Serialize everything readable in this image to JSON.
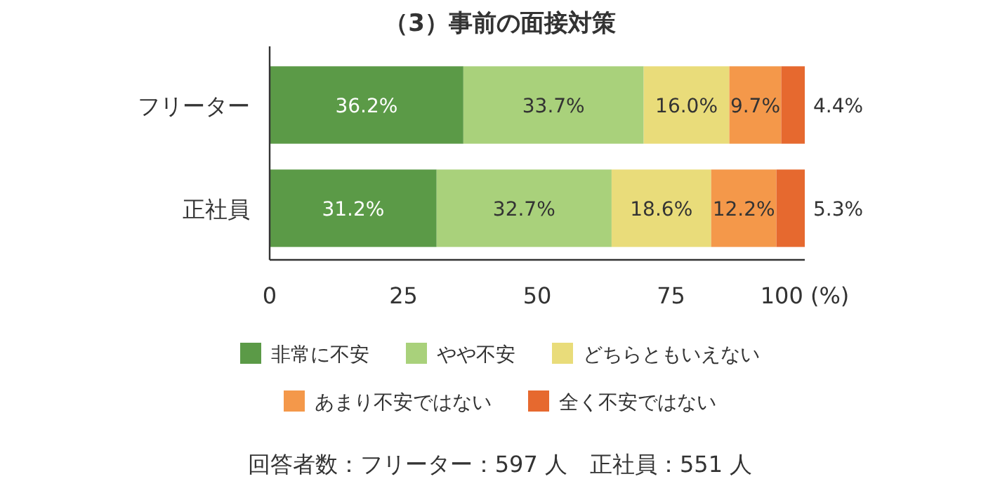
{
  "chart_data": {
    "type": "bar",
    "orientation": "horizontal",
    "stacked": true,
    "title": "（3）事前の面接対策",
    "categories": [
      "フリーター",
      "正社員"
    ],
    "series": [
      {
        "name": "非常に不安",
        "color": "#5b9a47",
        "values": [
          36.2,
          31.2
        ],
        "value_labels": [
          "36.2%",
          "31.2%"
        ]
      },
      {
        "name": "やや不安",
        "color": "#a9d17b",
        "values": [
          33.7,
          32.7
        ],
        "value_labels": [
          "33.7%",
          "32.7%"
        ]
      },
      {
        "name": "どちらともいえない",
        "color": "#e9dc7a",
        "values": [
          16.0,
          18.6
        ],
        "value_labels": [
          "16.0%",
          "18.6%"
        ]
      },
      {
        "name": "あまり不安ではない",
        "color": "#f4984a",
        "values": [
          9.7,
          12.2
        ],
        "value_labels": [
          "9.7%",
          "12.2%"
        ]
      },
      {
        "name": "全く不安ではない",
        "color": "#e6692f",
        "values": [
          4.4,
          5.3
        ],
        "value_labels": [
          "4.4%",
          "5.3%"
        ]
      }
    ],
    "xlim": [
      0,
      100
    ],
    "xticks": [
      0,
      25,
      50,
      75,
      {
        "value": 100,
        "label": "100 (%)"
      }
    ],
    "grid": false,
    "legend": "bottom",
    "annotations": [
      "回答者数：フリーター：597 人　正社員：551 人"
    ]
  }
}
